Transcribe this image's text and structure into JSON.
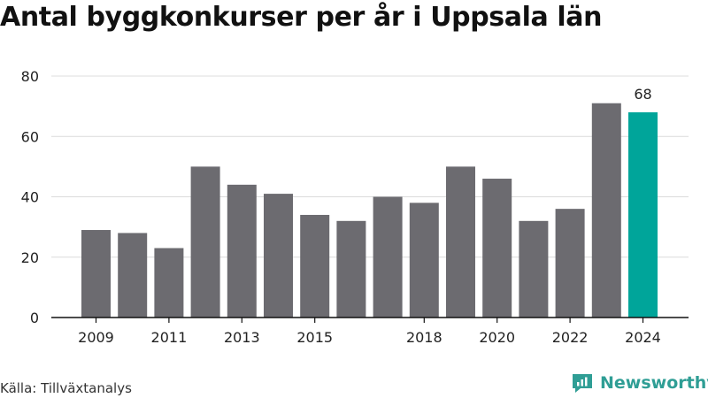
{
  "title": "Antal byggkonkurser per år i Uppsala län",
  "source": "Källa: Tillväxtanalys",
  "brand": {
    "name": "Newsworthy",
    "icon": "newsworthy-chat-chart-icon"
  },
  "colors": {
    "bar": "#6c6b70",
    "highlight": "#00a59a",
    "grid": "#dcdcdc",
    "axis": "#111111",
    "brand": "#2f9e95"
  },
  "chart_data": {
    "type": "bar",
    "categories": [
      "2009",
      "2010",
      "2011",
      "2012",
      "2013",
      "2014",
      "2015",
      "2016",
      "2017",
      "2018",
      "2019",
      "2020",
      "2021",
      "2022",
      "2023",
      "2024"
    ],
    "values": [
      29,
      28,
      23,
      50,
      44,
      41,
      34,
      32,
      40,
      38,
      50,
      46,
      32,
      36,
      71,
      68
    ],
    "tick_labels": [
      "2009",
      "2011",
      "2013",
      "2015",
      "2018",
      "2020",
      "2022",
      "2024"
    ],
    "ylim": [
      0,
      80
    ],
    "yticks": [
      0,
      20,
      40,
      60,
      80
    ],
    "grid": true,
    "highlight_category": "2024",
    "annotations": [
      {
        "category": "2024",
        "text": "68"
      }
    ]
  }
}
